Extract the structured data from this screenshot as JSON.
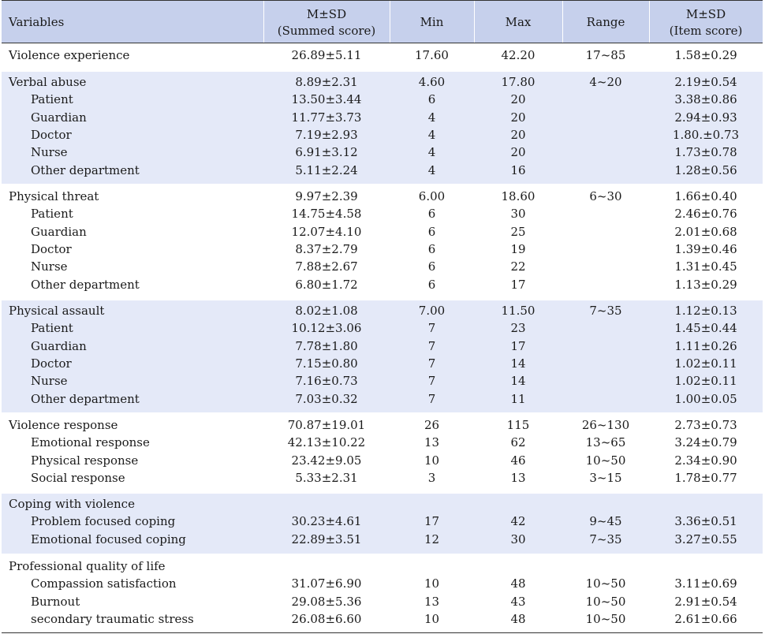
{
  "header": {
    "variables": "Variables",
    "summed_line1": "M±SD",
    "summed_line2": "(Summed score)",
    "min": "Min",
    "max": "Max",
    "range": "Range",
    "item_line1": "M±SD",
    "item_line2": "(Item score)"
  },
  "groups": [
    {
      "rows": [
        {
          "label": "Violence experience",
          "summed": "26.89±5.11",
          "min": "17.60",
          "max": "42.20",
          "range": "17~85",
          "item": "1.58±0.29"
        }
      ]
    },
    {
      "rows": [
        {
          "label": "Verbal abuse",
          "summed": "8.89±2.31",
          "min": "4.60",
          "max": "17.80",
          "range": "4~20",
          "item": "2.19±0.54"
        },
        {
          "label": "Patient",
          "summed": "13.50±3.44",
          "min": "6",
          "max": "20",
          "range": "",
          "item": "3.38±0.86"
        },
        {
          "label": "Guardian",
          "summed": "11.77±3.73",
          "min": "4",
          "max": "20",
          "range": "",
          "item": "2.94±0.93"
        },
        {
          "label": "Doctor",
          "summed": "7.19±2.93",
          "min": "4",
          "max": "20",
          "range": "",
          "item": "1.80.±0.73"
        },
        {
          "label": "Nurse",
          "summed": "6.91±3.12",
          "min": "4",
          "max": "20",
          "range": "",
          "item": "1.73±0.78"
        },
        {
          "label": "Other department",
          "summed": "5.11±2.24",
          "min": "4",
          "max": "16",
          "range": "",
          "item": "1.28±0.56"
        }
      ]
    },
    {
      "rows": [
        {
          "label": "Physical threat",
          "summed": "9.97±2.39",
          "min": "6.00",
          "max": "18.60",
          "range": "6~30",
          "item": "1.66±0.40"
        },
        {
          "label": "Patient",
          "summed": "14.75±4.58",
          "min": "6",
          "max": "30",
          "range": "",
          "item": "2.46±0.76"
        },
        {
          "label": "Guardian",
          "summed": "12.07±4.10",
          "min": "6",
          "max": "25",
          "range": "",
          "item": "2.01±0.68"
        },
        {
          "label": "Doctor",
          "summed": "8.37±2.79",
          "min": "6",
          "max": "19",
          "range": "",
          "item": "1.39±0.46"
        },
        {
          "label": "Nurse",
          "summed": "7.88±2.67",
          "min": "6",
          "max": "22",
          "range": "",
          "item": "1.31±0.45"
        },
        {
          "label": "Other department",
          "summed": "6.80±1.72",
          "min": "6",
          "max": "17",
          "range": "",
          "item": "1.13±0.29"
        }
      ]
    },
    {
      "rows": [
        {
          "label": "Physical assault",
          "summed": "8.02±1.08",
          "min": "7.00",
          "max": "11.50",
          "range": "7~35",
          "item": "1.12±0.13"
        },
        {
          "label": "Patient",
          "summed": "10.12±3.06",
          "min": "7",
          "max": "23",
          "range": "",
          "item": "1.45±0.44"
        },
        {
          "label": "Guardian",
          "summed": "7.78±1.80",
          "min": "7",
          "max": "17",
          "range": "",
          "item": "1.11±0.26"
        },
        {
          "label": "Doctor",
          "summed": "7.15±0.80",
          "min": "7",
          "max": "14",
          "range": "",
          "item": "1.02±0.11"
        },
        {
          "label": "Nurse",
          "summed": "7.16±0.73",
          "min": "7",
          "max": "14",
          "range": "",
          "item": "1.02±0.11"
        },
        {
          "label": "Other department",
          "summed": "7.03±0.32",
          "min": "7",
          "max": "11",
          "range": "",
          "item": "1.00±0.05"
        }
      ]
    },
    {
      "rows": [
        {
          "label": "Violence response",
          "summed": "70.87±19.01",
          "min": "26",
          "max": "115",
          "range": "26~130",
          "item": "2.73±0.73"
        },
        {
          "label": "Emotional response",
          "summed": "42.13±10.22",
          "min": "13",
          "max": "62",
          "range": "13~65",
          "item": "3.24±0.79"
        },
        {
          "label": "Physical response",
          "summed": "23.42±9.05",
          "min": "10",
          "max": "46",
          "range": "10~50",
          "item": "2.34±0.90"
        },
        {
          "label": "Social response",
          "summed": "5.33±2.31",
          "min": "3",
          "max": "13",
          "range": "3~15",
          "item": "1.78±0.77"
        }
      ]
    },
    {
      "rows": [
        {
          "label": "Coping with violence",
          "summed": "",
          "min": "",
          "max": "",
          "range": "",
          "item": ""
        },
        {
          "label": "Problem focused coping",
          "summed": "30.23±4.61",
          "min": "17",
          "max": "42",
          "range": "9~45",
          "item": "3.36±0.51"
        },
        {
          "label": "Emotional focused coping",
          "summed": "22.89±3.51",
          "min": "12",
          "max": "30",
          "range": "7~35",
          "item": "3.27±0.55"
        }
      ]
    },
    {
      "rows": [
        {
          "label": "Professional quality of life",
          "summed": "",
          "min": "",
          "max": "",
          "range": "",
          "item": ""
        },
        {
          "label": "Compassion satisfaction",
          "summed": "31.07±6.90",
          "min": "10",
          "max": "48",
          "range": "10~50",
          "item": "3.11±0.69"
        },
        {
          "label": "Burnout",
          "summed": "29.08±5.36",
          "min": "13",
          "max": "43",
          "range": "10~50",
          "item": "2.91±0.54"
        },
        {
          "label": "secondary traumatic stress",
          "summed": "26.08±6.60",
          "min": "10",
          "max": "48",
          "range": "10~50",
          "item": "2.61±0.66"
        }
      ]
    }
  ]
}
